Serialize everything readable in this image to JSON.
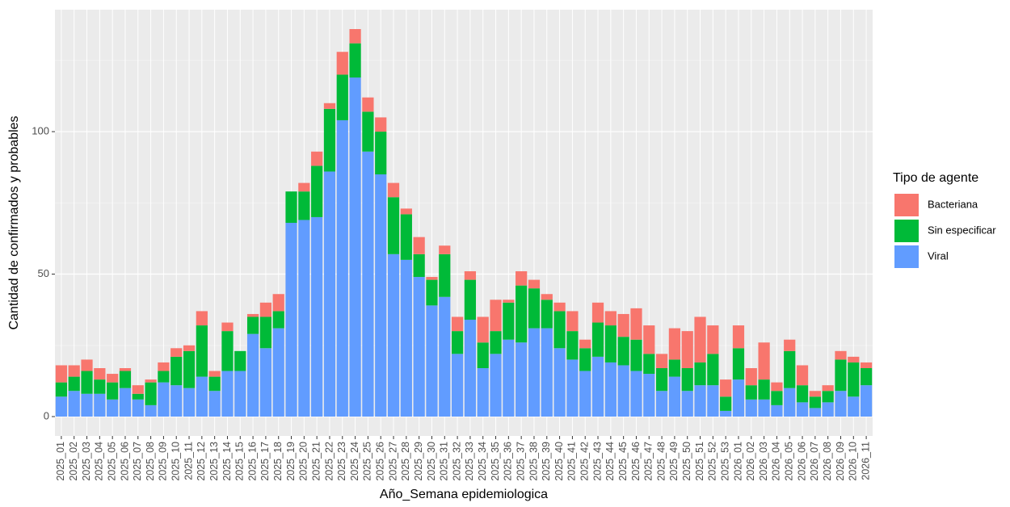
{
  "chart_data": {
    "type": "stacked_bar",
    "xlabel": "Año_Semana epidemiologica",
    "ylabel": "Cantidad de confirmados y probables",
    "legend_title": "Tipo de agente",
    "legend_position": "right",
    "grid": true,
    "categories": [
      "2025_01",
      "2025_02",
      "2025_03",
      "2025_04",
      "2025_05",
      "2025_06",
      "2025_07",
      "2025_08",
      "2025_09",
      "2025_10",
      "2025_11",
      "2025_12",
      "2025_13",
      "2025_14",
      "2025_15",
      "2025_16",
      "2025_17",
      "2025_18",
      "2025_19",
      "2025_20",
      "2025_21",
      "2025_22",
      "2025_23",
      "2025_24",
      "2025_25",
      "2025_26",
      "2025_27",
      "2025_28",
      "2025_29",
      "2025_30",
      "2025_31",
      "2025_32",
      "2025_33",
      "2025_34",
      "2025_35",
      "2025_36",
      "2025_37",
      "2025_38",
      "2025_39",
      "2025_40",
      "2025_41",
      "2025_42",
      "2025_43",
      "2025_44",
      "2025_45",
      "2025_46",
      "2025_47",
      "2025_48",
      "2025_49",
      "2025_50",
      "2025_51",
      "2025_52",
      "2025_53",
      "2026_01",
      "2026_02",
      "2026_03",
      "2026_04",
      "2026_05",
      "2026_06",
      "2026_07",
      "2026_08",
      "2026_09",
      "2026_10",
      "2026_11"
    ],
    "series": [
      {
        "name": "Bacteriana",
        "color": "#F8766D",
        "values": [
          6,
          4,
          4,
          4,
          3,
          1,
          3,
          1,
          3,
          3,
          2,
          5,
          2,
          3,
          0,
          1,
          5,
          6,
          0,
          3,
          5,
          2,
          8,
          5,
          5,
          5,
          5,
          2,
          6,
          1,
          3,
          5,
          3,
          9,
          11,
          1,
          5,
          3,
          2,
          3,
          7,
          3,
          7,
          5,
          8,
          11,
          10,
          5,
          11,
          13,
          16,
          10,
          6,
          8,
          6,
          13,
          3,
          4,
          7,
          2,
          2,
          3,
          2,
          2
        ]
      },
      {
        "name": "Sin especificar",
        "color": "#00BA38",
        "values": [
          5,
          5,
          8,
          5,
          6,
          6,
          2,
          8,
          4,
          10,
          13,
          18,
          5,
          14,
          7,
          6,
          11,
          6,
          11,
          10,
          18,
          22,
          16,
          12,
          14,
          15,
          20,
          16,
          8,
          9,
          15,
          8,
          14,
          9,
          8,
          13,
          20,
          14,
          10,
          13,
          10,
          8,
          12,
          13,
          10,
          11,
          7,
          8,
          6,
          8,
          8,
          11,
          5,
          11,
          5,
          7,
          5,
          13,
          6,
          4,
          4,
          11,
          12,
          6
        ]
      },
      {
        "name": "Viral",
        "color": "#619CFF",
        "values": [
          7,
          9,
          8,
          8,
          6,
          10,
          6,
          4,
          12,
          11,
          10,
          14,
          9,
          16,
          16,
          29,
          24,
          31,
          68,
          69,
          70,
          86,
          104,
          119,
          93,
          85,
          57,
          55,
          49,
          39,
          42,
          22,
          34,
          17,
          22,
          27,
          26,
          31,
          31,
          24,
          20,
          16,
          21,
          19,
          18,
          16,
          15,
          9,
          14,
          9,
          11,
          11,
          2,
          13,
          6,
          6,
          4,
          10,
          5,
          3,
          5,
          9,
          7,
          11
        ]
      }
    ],
    "ylim": [
      -6.8,
      142.8
    ],
    "yticks": [
      0,
      50,
      100
    ]
  }
}
